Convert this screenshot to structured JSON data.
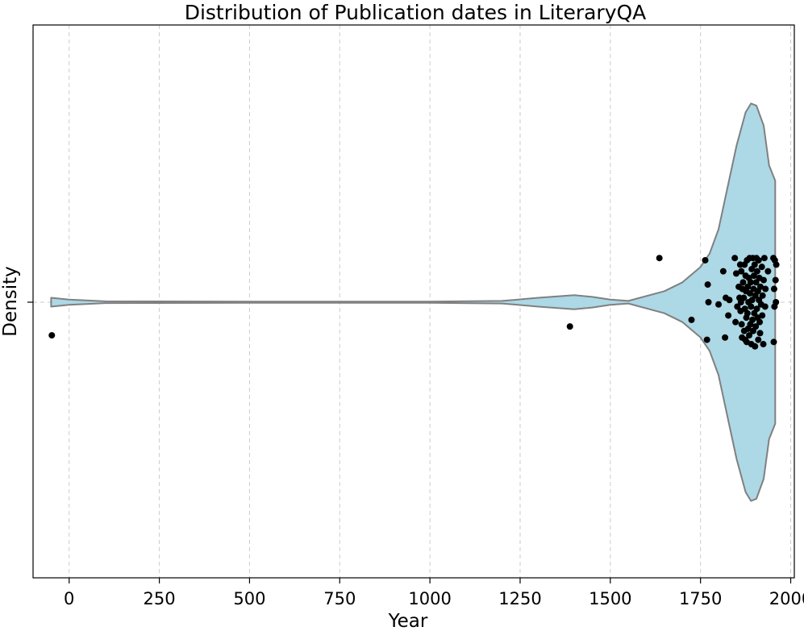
{
  "chart_data": {
    "type": "violin",
    "title": "Distribution of Publication dates in LiteraryQA",
    "xlabel": "Year",
    "ylabel": "Density",
    "xlim": [
      -100,
      2010
    ],
    "xticks": [
      0,
      250,
      500,
      750,
      1000,
      1250,
      1500,
      1750,
      2000
    ],
    "grid": "x-dashed",
    "colors": {
      "violin_fill": "#add8e6",
      "violin_edge": "#808080",
      "points": "#000000",
      "grid": "#cccccc"
    },
    "violin_profile": {
      "x": [
        -50,
        0,
        100,
        500,
        1000,
        1200,
        1300,
        1400,
        1450,
        1500,
        1550,
        1650,
        1700,
        1750,
        1775,
        1800,
        1825,
        1850,
        1875,
        1890,
        1905,
        1925,
        1940,
        1957
      ],
      "half_width": [
        0.02,
        0.012,
        0.004,
        0.003,
        0.003,
        0.006,
        0.02,
        0.032,
        0.024,
        0.012,
        0.006,
        0.05,
        0.09,
        0.16,
        0.22,
        0.33,
        0.52,
        0.71,
        0.86,
        0.9,
        0.89,
        0.8,
        0.62,
        0.55
      ]
    },
    "points": [
      [
        -48,
        -0.15
      ],
      [
        1388,
        -0.11
      ],
      [
        1636,
        0.2
      ],
      [
        1725,
        -0.08
      ],
      [
        1763,
        0.19
      ],
      [
        1768,
        -0.17
      ],
      [
        1770,
        0.08
      ],
      [
        1772,
        0.0
      ],
      [
        1800,
        -0.01
      ],
      [
        1813,
        0.14
      ],
      [
        1818,
        -0.16
      ],
      [
        1820,
        0.02
      ],
      [
        1827,
        -0.06
      ],
      [
        1830,
        0.01
      ],
      [
        1845,
        0.2
      ],
      [
        1847,
        -0.09
      ],
      [
        1849,
        0.13
      ],
      [
        1852,
        -0.02
      ],
      [
        1856,
        0.07
      ],
      [
        1858,
        0.02
      ],
      [
        1860,
        0.17
      ],
      [
        1861,
        -0.04
      ],
      [
        1862,
        0.0
      ],
      [
        1863,
        0.14
      ],
      [
        1864,
        -0.1
      ],
      [
        1865,
        -0.16
      ],
      [
        1866,
        0.06
      ],
      [
        1868,
        0.09
      ],
      [
        1870,
        0.02
      ],
      [
        1871,
        -0.13
      ],
      [
        1872,
        0.17
      ],
      [
        1873,
        -0.03
      ],
      [
        1874,
        -0.17
      ],
      [
        1875,
        0.12
      ],
      [
        1876,
        0.05
      ],
      [
        1877,
        -0.07
      ],
      [
        1878,
        -0.18
      ],
      [
        1879,
        0.19
      ],
      [
        1880,
        -0.05
      ],
      [
        1881,
        0.07
      ],
      [
        1882,
        -0.12
      ],
      [
        1883,
        0.0
      ],
      [
        1884,
        0.11
      ],
      [
        1885,
        -0.15
      ],
      [
        1886,
        0.2
      ],
      [
        1887,
        0.04
      ],
      [
        1888,
        -0.1
      ],
      [
        1889,
        0.09
      ],
      [
        1890,
        -0.02
      ],
      [
        1891,
        -0.19
      ],
      [
        1892,
        0.15
      ],
      [
        1893,
        0.01
      ],
      [
        1894,
        -0.08
      ],
      [
        1895,
        0.2
      ],
      [
        1896,
        -0.13
      ],
      [
        1897,
        0.06
      ],
      [
        1898,
        0.12
      ],
      [
        1899,
        -0.05
      ],
      [
        1900,
        0.17
      ],
      [
        1901,
        -0.2
      ],
      [
        1902,
        0.03
      ],
      [
        1903,
        -0.11
      ],
      [
        1904,
        0.09
      ],
      [
        1905,
        0.2
      ],
      [
        1906,
        -0.03
      ],
      [
        1907,
        0.14
      ],
      [
        1908,
        -0.07
      ],
      [
        1909,
        0.05
      ],
      [
        1910,
        -0.17
      ],
      [
        1911,
        0.19
      ],
      [
        1912,
        0.01
      ],
      [
        1913,
        0.11
      ],
      [
        1914,
        -0.09
      ],
      [
        1915,
        -0.14
      ],
      [
        1916,
        0.07
      ],
      [
        1918,
        -0.01
      ],
      [
        1920,
        0.16
      ],
      [
        1921,
        -0.06
      ],
      [
        1922,
        0.03
      ],
      [
        1924,
        -0.19
      ],
      [
        1925,
        0.1
      ],
      [
        1927,
        0.2
      ],
      [
        1929,
        -0.02
      ],
      [
        1930,
        0.06
      ],
      [
        1937,
        0.14
      ],
      [
        1952,
        0.2
      ],
      [
        1953,
        -0.18
      ],
      [
        1954,
        0.06
      ],
      [
        1955,
        -0.02
      ],
      [
        1956,
        0.19
      ],
      [
        1958,
        0.1
      ],
      [
        1959,
        0.0
      ],
      [
        1960,
        0.17
      ]
    ]
  }
}
